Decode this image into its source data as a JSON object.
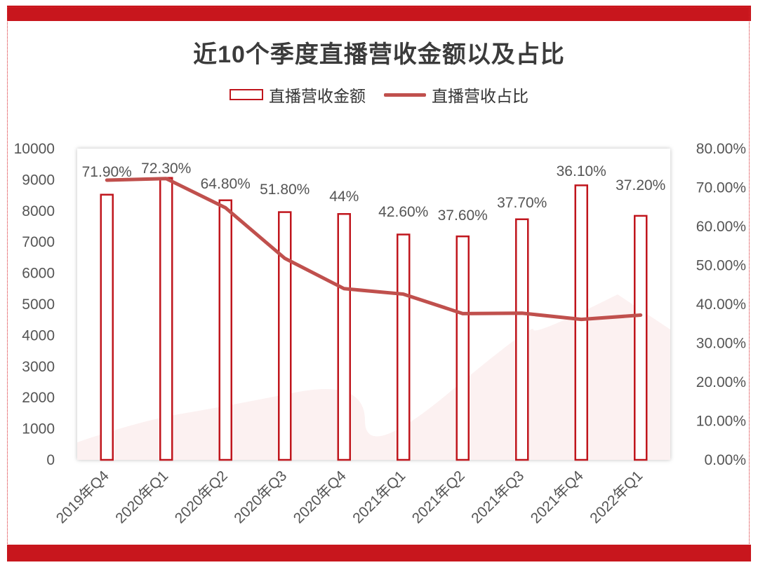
{
  "colors": {
    "band": "#c8161d",
    "bar_outline": "#c0161d",
    "line": "#c0504d",
    "text": "#555555"
  },
  "chart_data": {
    "type": "bar",
    "title": "近10个季度直播营收金额以及占比",
    "categories": [
      "2019年Q4",
      "2020年Q1",
      "2020年Q2",
      "2020年Q3",
      "2020年Q4",
      "2021年Q1",
      "2021年Q2",
      "2021年Q3",
      "2021年Q4",
      "2022年Q1"
    ],
    "series": [
      {
        "name": "直播营收金额",
        "type": "bar",
        "axis": "left",
        "values": [
          8520,
          9060,
          8340,
          7960,
          7900,
          7240,
          7180,
          7730,
          8820,
          7840
        ]
      },
      {
        "name": "直播营收占比",
        "type": "line",
        "axis": "right",
        "values": [
          71.9,
          72.3,
          64.8,
          51.8,
          44.0,
          42.6,
          37.6,
          37.7,
          36.1,
          37.2
        ],
        "labels": [
          "71.90%",
          "72.30%",
          "64.80%",
          "51.80%",
          "44%",
          "42.60%",
          "37.60%",
          "37.70%",
          "36.10%",
          "37.20%"
        ]
      }
    ],
    "ylim_left": [
      0,
      10000
    ],
    "yticks_left": [
      "0",
      "1000",
      "2000",
      "3000",
      "4000",
      "5000",
      "6000",
      "7000",
      "8000",
      "9000",
      "10000"
    ],
    "ylim_right": [
      0,
      80
    ],
    "yticks_right": [
      "0.00%",
      "10.00%",
      "20.00%",
      "30.00%",
      "40.00%",
      "50.00%",
      "60.00%",
      "70.00%",
      "80.00%"
    ],
    "legend": "top",
    "grid": false
  }
}
